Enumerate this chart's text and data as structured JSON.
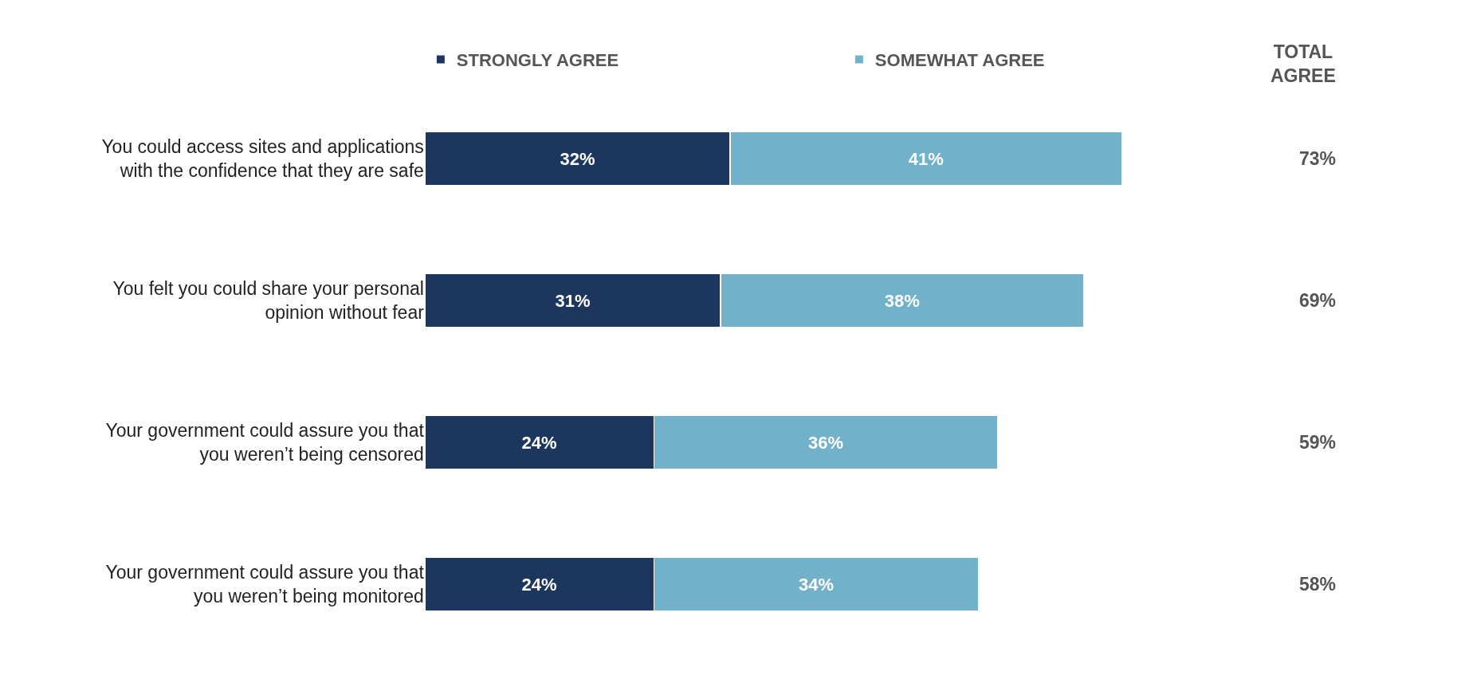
{
  "chart_data": {
    "type": "bar",
    "orientation": "horizontal",
    "stacked": true,
    "legend": "top",
    "categories": [
      "You could access sites and applications with the confidence that they are safe",
      "You felt you could share your personal opinion without fear",
      "Your government could assure you that you weren’t being censored",
      "Your government could assure you that you weren’t being monitored"
    ],
    "series": [
      {
        "name": "STRONGLY AGREE",
        "color": "#1c365e",
        "values": [
          32,
          31,
          24,
          24
        ],
        "value_labels": [
          "32%",
          "31%",
          "24%",
          "24%"
        ]
      },
      {
        "name": "SOMEWHAT AGREE",
        "color": "#71b1c9",
        "values": [
          41,
          38,
          36,
          34
        ],
        "value_labels": [
          "41%",
          "38%",
          "36%",
          "34%"
        ]
      }
    ],
    "annotations": [
      "TOTAL AGREE",
      "73%",
      "69%",
      "59%",
      "58%"
    ]
  }
}
